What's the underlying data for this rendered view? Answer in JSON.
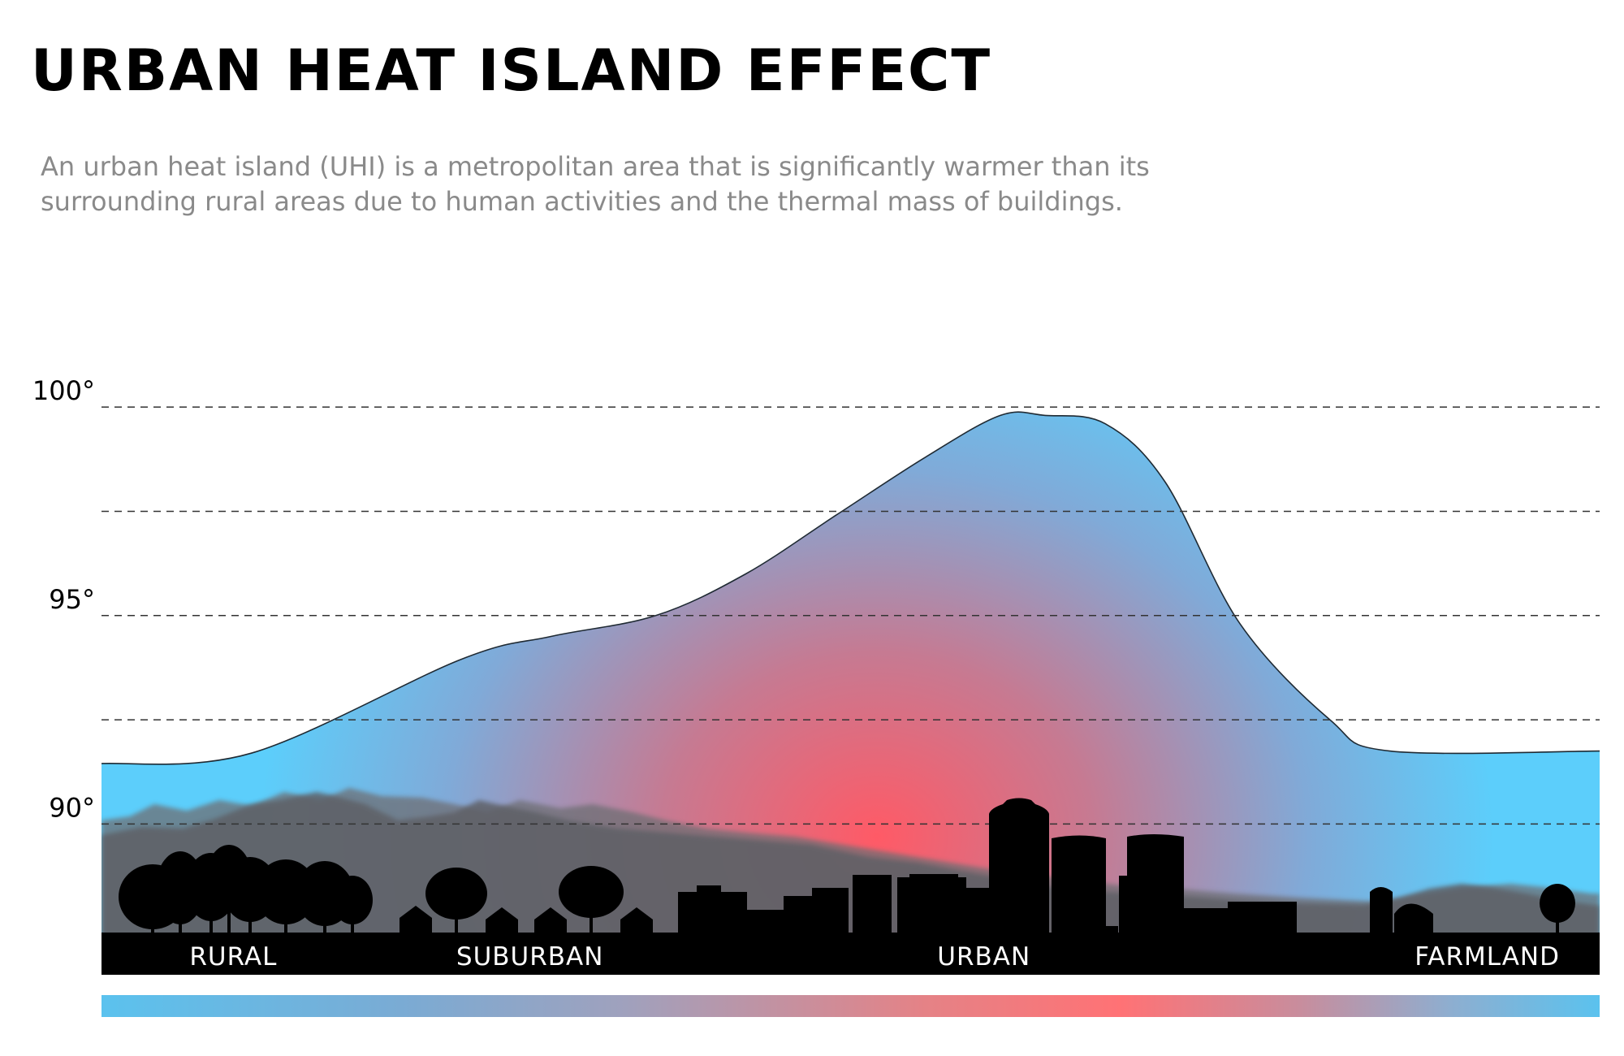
{
  "chart_data": {
    "type": "area",
    "title": "URBAN HEAT ISLAND EFFECT",
    "subtitle": "An urban heat island (UHI) is a metropolitan area that is significantly warmer than its surrounding rural areas due to human activities and the thermal mass of buildings.",
    "x": [
      0,
      0.1,
      0.24,
      0.3,
      0.37,
      0.43,
      0.49,
      0.55,
      0.6,
      0.63,
      0.67,
      0.71,
      0.76,
      0.82,
      0.86,
      1.0
    ],
    "y": [
      91.45,
      91.7,
      93.95,
      94.5,
      95.0,
      96.0,
      97.4,
      98.8,
      99.8,
      99.8,
      99.6,
      98.2,
      94.8,
      92.5,
      91.75,
      91.75
    ],
    "ylim": [
      87.3,
      100.5
    ],
    "y_ticks": [
      {
        "value": 100,
        "label": "100°"
      },
      {
        "value": 95,
        "label": "95°"
      },
      {
        "value": 90,
        "label": "90°"
      }
    ],
    "gridlines": [
      100,
      97.5,
      95,
      92.5,
      90
    ],
    "zones": [
      {
        "label": "RURAL",
        "position": 0.088
      },
      {
        "label": "SUBURBAN",
        "position": 0.286
      },
      {
        "label": "URBAN",
        "position": 0.589
      },
      {
        "label": "FARMLAND",
        "position": 0.925
      }
    ],
    "colors": {
      "cool": "#5bcdfb",
      "warm": "#ff6f6f",
      "silhouette": "#000000",
      "mountain": "#6f6e72"
    },
    "legend": "none"
  }
}
